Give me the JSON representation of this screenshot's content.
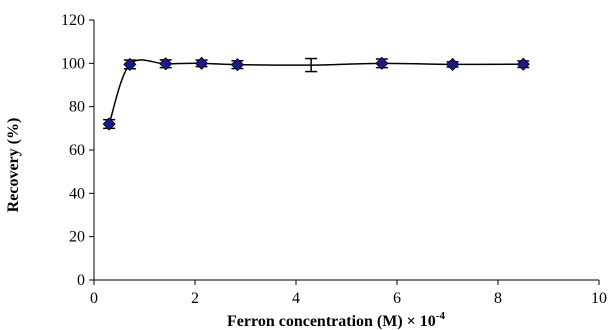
{
  "chart_data": {
    "type": "scatter",
    "title": "",
    "xlabel": "Ferron concentration (M) × 10",
    "xlabel_exponent": "-4",
    "ylabel": "Recovery (%)",
    "xlim": [
      0,
      10
    ],
    "ylim": [
      0,
      120
    ],
    "xticks": [
      0,
      2,
      4,
      6,
      8,
      10
    ],
    "yticks": [
      0,
      20,
      40,
      60,
      80,
      100,
      120
    ],
    "grid": false,
    "legend": "none",
    "smoothed_line": true,
    "colors": {
      "marker": "#1a1a8c",
      "line": "#000000"
    },
    "series": [
      {
        "x": [
          0.3,
          0.71,
          1.42,
          2.13,
          2.84,
          4.3,
          5.7,
          7.1,
          8.5
        ],
        "y": [
          72,
          99.5,
          99.8,
          100,
          99.4,
          99.2,
          100,
          99.5,
          99.6
        ],
        "error": [
          2.0,
          2.0,
          1.8,
          1.5,
          1.8,
          3.0,
          2.0,
          1.2,
          1.5
        ],
        "markers": [
          true,
          true,
          true,
          true,
          true,
          false,
          true,
          true,
          true
        ]
      }
    ]
  }
}
